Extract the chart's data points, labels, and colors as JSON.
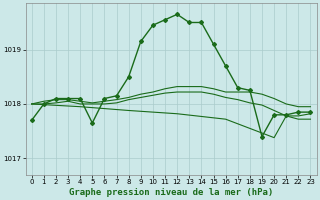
{
  "background_color": "#cce8e8",
  "grid_color": "#aacccc",
  "line_color": "#1a6b1a",
  "x_ticks": [
    0,
    1,
    2,
    3,
    4,
    5,
    6,
    7,
    8,
    9,
    10,
    11,
    12,
    13,
    14,
    15,
    16,
    17,
    18,
    19,
    20,
    21,
    22,
    23
  ],
  "y_ticks": [
    1017,
    1018,
    1019
  ],
  "ylim": [
    1016.7,
    1019.85
  ],
  "xlim": [
    -0.5,
    23.5
  ],
  "xlabel": "Graphe pression niveau de la mer (hPa)",
  "lines": [
    {
      "x": [
        0,
        1,
        2,
        3,
        4,
        5,
        6,
        7,
        8,
        9,
        10,
        11,
        12,
        13,
        14,
        15,
        16,
        17,
        18,
        19,
        20,
        21,
        22,
        23
      ],
      "y": [
        1017.7,
        1018.0,
        1018.1,
        1018.1,
        1018.1,
        1017.65,
        1018.1,
        1018.15,
        1018.5,
        1019.15,
        1019.45,
        1019.55,
        1019.65,
        1019.5,
        1019.5,
        1019.1,
        1018.7,
        1018.3,
        1018.25,
        1017.4,
        1017.8,
        1017.8,
        1017.85,
        1017.85
      ],
      "marker": "D",
      "markersize": 2.0,
      "linewidth": 1.0
    },
    {
      "x": [
        0,
        1,
        2,
        3,
        4,
        5,
        6,
        7,
        8,
        9,
        10,
        11,
        12,
        13,
        14,
        15,
        16,
        17,
        18,
        19,
        20,
        21,
        22,
        23
      ],
      "y": [
        1018.0,
        1018.05,
        1018.08,
        1018.08,
        1018.05,
        1018.02,
        1018.05,
        1018.08,
        1018.12,
        1018.18,
        1018.22,
        1018.28,
        1018.32,
        1018.32,
        1018.32,
        1018.28,
        1018.22,
        1018.22,
        1018.22,
        1018.18,
        1018.1,
        1018.0,
        1017.95,
        1017.95
      ],
      "marker": null,
      "markersize": 0,
      "linewidth": 0.8
    },
    {
      "x": [
        0,
        1,
        2,
        3,
        4,
        5,
        6,
        7,
        8,
        9,
        10,
        11,
        12,
        13,
        14,
        15,
        16,
        17,
        18,
        19,
        20,
        21,
        22,
        23
      ],
      "y": [
        1018.0,
        1018.0,
        1018.02,
        1018.05,
        1018.0,
        1018.0,
        1018.0,
        1018.02,
        1018.08,
        1018.12,
        1018.16,
        1018.2,
        1018.22,
        1018.22,
        1018.22,
        1018.18,
        1018.12,
        1018.08,
        1018.02,
        1017.98,
        1017.88,
        1017.78,
        1017.72,
        1017.72
      ],
      "marker": null,
      "markersize": 0,
      "linewidth": 0.8
    },
    {
      "x": [
        0,
        4,
        8,
        12,
        16,
        20,
        21,
        22,
        23
      ],
      "y": [
        1018.0,
        1017.95,
        1017.88,
        1017.82,
        1017.72,
        1017.38,
        1017.78,
        1017.78,
        1017.82
      ],
      "marker": null,
      "markersize": 0,
      "linewidth": 0.8
    }
  ],
  "title_fontsize": 6.5,
  "tick_fontsize": 5.0
}
